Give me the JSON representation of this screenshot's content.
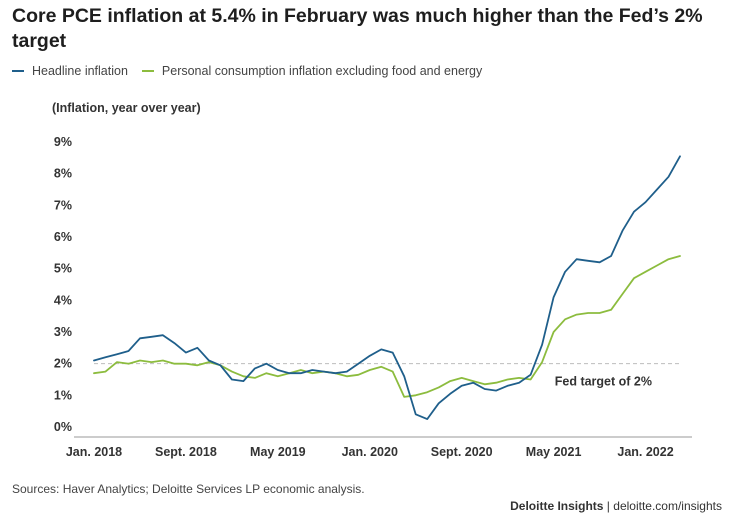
{
  "header": {
    "title": "Core PCE inflation at 5.4% in February was much higher than the Fed’s 2% target"
  },
  "footer": {
    "source": "Sources: Haver Analytics; Deloitte Services LP economic analysis.",
    "brand_name": "Deloitte Insights",
    "brand_separator": "|",
    "brand_url": "deloitte.com/insights"
  },
  "chart_data": {
    "type": "line",
    "title": "Core PCE inflation at 5.4% in February was much higher than the Fed’s 2% target",
    "ylabel": "(Inflation, year over year)",
    "xlabel": "",
    "ylim": [
      0,
      9
    ],
    "yticks": [
      "0%",
      "1%",
      "2%",
      "3%",
      "4%",
      "5%",
      "6%",
      "7%",
      "8%",
      "9%"
    ],
    "x_tick_labels": [
      "Jan. 2018",
      "Sept. 2018",
      "May 2019",
      "Jan. 2020",
      "Sept. 2020",
      "May 2021",
      "Jan. 2022"
    ],
    "x_tick_index": [
      0,
      8,
      16,
      24,
      32,
      40,
      48
    ],
    "x_range": [
      "Jan. 2018",
      "Feb. 2022"
    ],
    "grid": false,
    "legend_position": "top-left",
    "reference_line": {
      "value": 2,
      "label": "Fed target of 2%",
      "style": "dashed"
    },
    "series": [
      {
        "name": "Headline inflation",
        "color": "#1f5f8b",
        "values": [
          2.1,
          2.2,
          2.3,
          2.4,
          2.8,
          2.85,
          2.9,
          2.65,
          2.35,
          2.5,
          2.1,
          1.95,
          1.5,
          1.45,
          1.85,
          2.0,
          1.8,
          1.7,
          1.7,
          1.8,
          1.75,
          1.7,
          1.75,
          2.0,
          2.25,
          2.45,
          2.35,
          1.6,
          0.4,
          0.25,
          0.75,
          1.05,
          1.3,
          1.4,
          1.2,
          1.15,
          1.3,
          1.4,
          1.65,
          2.6,
          4.1,
          4.9,
          5.3,
          5.25,
          5.2,
          5.4,
          6.2,
          6.8,
          7.1,
          7.5,
          7.9,
          8.55
        ]
      },
      {
        "name": "Personal consumption inflation excluding food and energy",
        "color": "#8cbc3e",
        "values": [
          1.7,
          1.75,
          2.05,
          2.0,
          2.1,
          2.05,
          2.1,
          2.0,
          2.0,
          1.95,
          2.05,
          1.95,
          1.75,
          1.6,
          1.55,
          1.7,
          1.6,
          1.7,
          1.8,
          1.7,
          1.75,
          1.7,
          1.6,
          1.65,
          1.8,
          1.9,
          1.75,
          0.95,
          1.0,
          1.1,
          1.25,
          1.45,
          1.55,
          1.45,
          1.35,
          1.4,
          1.5,
          1.55,
          1.5,
          2.05,
          3.0,
          3.4,
          3.55,
          3.6,
          3.6,
          3.7,
          4.2,
          4.7,
          4.9,
          5.1,
          5.3,
          5.4
        ]
      }
    ]
  }
}
